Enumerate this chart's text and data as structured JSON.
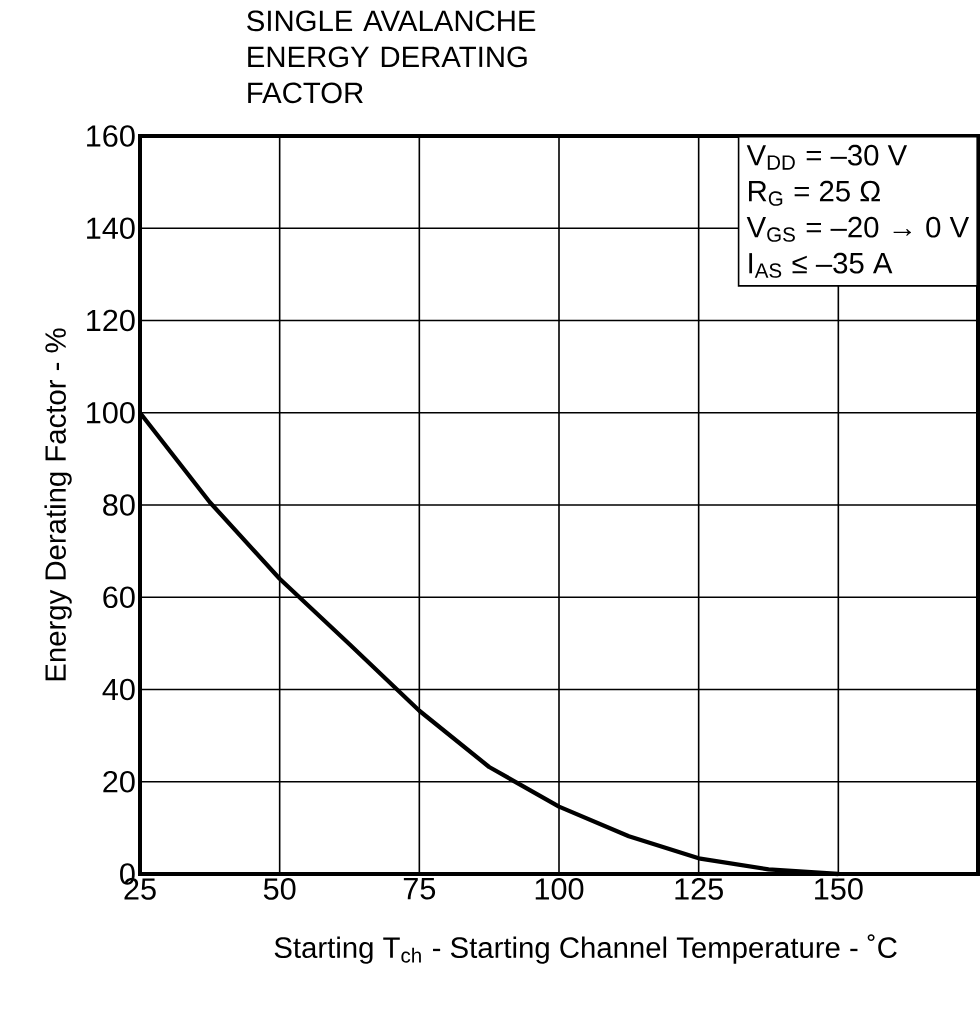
{
  "chart_data": {
    "type": "line",
    "title": "SINGLE AVALANCHE ENERGY DERATING FACTOR",
    "xlabel": "Starting T$_{ch}$ - Starting Channel Temperature - ˚C",
    "ylabel": "Energy Derating Factor - %",
    "x": [
      25,
      37.5,
      50,
      62.5,
      75,
      87.5,
      100,
      112.5,
      125,
      137.5,
      150
    ],
    "series": [
      {
        "color": "#000000",
        "values": [
          100,
          80.6,
          64,
          49.8,
          35.4,
          23.2,
          14.6,
          8.2,
          3.4,
          1.0,
          0
        ]
      }
    ],
    "xlim": [
      25,
      175
    ],
    "ylim": [
      0,
      160
    ],
    "xticks": [
      25,
      50,
      75,
      100,
      125,
      150
    ],
    "yticks": [
      0,
      20,
      40,
      60,
      80,
      100,
      120,
      140,
      160
    ],
    "grid": true,
    "marker": "none",
    "line_style": "solid",
    "annotations": [
      "V$_{DD}$ = –30 V",
      "R$_{G}$ = 25 Ω",
      "V$_{GS}$ = –20 → 0 V",
      "I$_{AS}$ ≤ –35 A"
    ]
  }
}
